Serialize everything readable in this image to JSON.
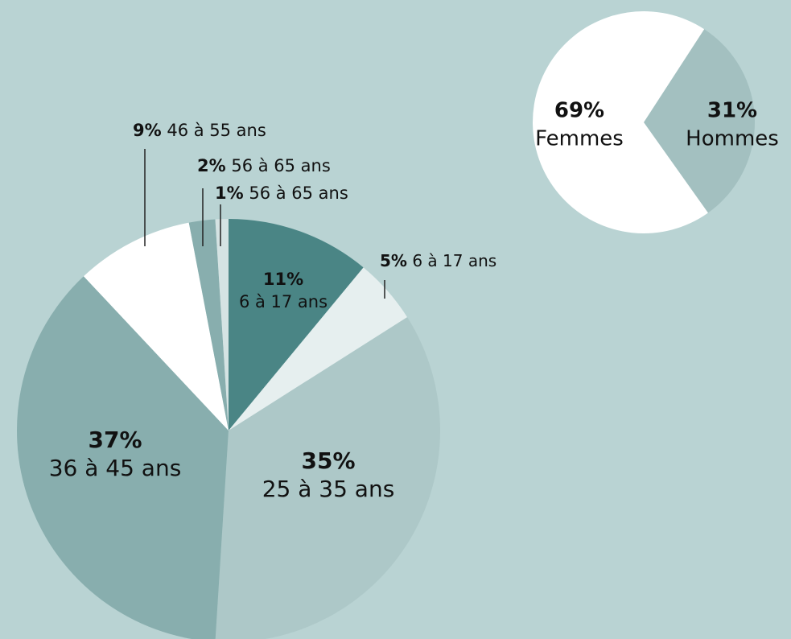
{
  "chart_data": [
    {
      "type": "pie",
      "categories": [
        "6 à 17 ans",
        "6 à 17 ans",
        "25 à 35 ans",
        "36 à 45 ans",
        "46 à 55 ans",
        "56 à 65 ans",
        "56 à 65 ans"
      ],
      "values": [
        11,
        5,
        35,
        37,
        9,
        2,
        1
      ],
      "value_labels": [
        "11%",
        "5%",
        "35%",
        "37%",
        "9%",
        "2%",
        "1%"
      ],
      "colors": [
        "#4a8585",
        "#e6efef",
        "#adc8c8",
        "#88aeae",
        "#ffffff",
        "#88aeae",
        "#d5e3e3"
      ]
    },
    {
      "type": "pie",
      "categories": [
        "Hommes",
        "Femmes"
      ],
      "values": [
        31,
        69
      ],
      "value_labels": [
        "31%",
        "69%"
      ],
      "colors": [
        "#a3c0c0",
        "#ffffff"
      ]
    }
  ]
}
